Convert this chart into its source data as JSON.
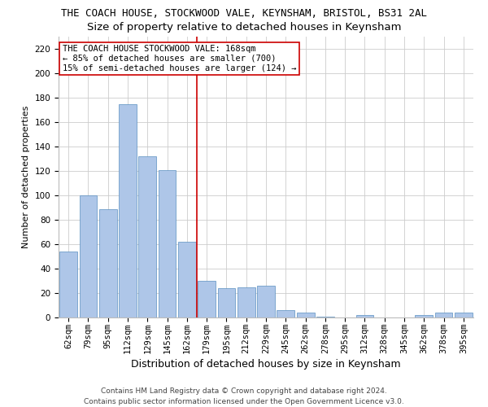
{
  "title1": "THE COACH HOUSE, STOCKWOOD VALE, KEYNSHAM, BRISTOL, BS31 2AL",
  "title2": "Size of property relative to detached houses in Keynsham",
  "xlabel": "Distribution of detached houses by size in Keynsham",
  "ylabel": "Number of detached properties",
  "categories": [
    "62sqm",
    "79sqm",
    "95sqm",
    "112sqm",
    "129sqm",
    "145sqm",
    "162sqm",
    "179sqm",
    "195sqm",
    "212sqm",
    "229sqm",
    "245sqm",
    "262sqm",
    "278sqm",
    "295sqm",
    "312sqm",
    "328sqm",
    "345sqm",
    "362sqm",
    "378sqm",
    "395sqm"
  ],
  "values": [
    54,
    100,
    89,
    175,
    132,
    121,
    62,
    30,
    24,
    25,
    26,
    6,
    4,
    1,
    0,
    2,
    0,
    0,
    2,
    4,
    4
  ],
  "bar_color": "#aec6e8",
  "bar_edge_color": "#5a8fc0",
  "vline_color": "#cc0000",
  "grid_color": "#cccccc",
  "ylim": [
    0,
    230
  ],
  "yticks": [
    0,
    20,
    40,
    60,
    80,
    100,
    120,
    140,
    160,
    180,
    200,
    220
  ],
  "annotation_lines": [
    "THE COACH HOUSE STOCKWOOD VALE: 168sqm",
    "← 85% of detached houses are smaller (700)",
    "15% of semi-detached houses are larger (124) →"
  ],
  "annotation_box_color": "#ffffff",
  "annotation_box_edge": "#cc0000",
  "footer1": "Contains HM Land Registry data © Crown copyright and database right 2024.",
  "footer2": "Contains public sector information licensed under the Open Government Licence v3.0.",
  "bg_color": "#ffffff",
  "title1_fontsize": 9,
  "title2_fontsize": 9.5,
  "xlabel_fontsize": 9,
  "ylabel_fontsize": 8,
  "tick_fontsize": 7.5,
  "footer_fontsize": 6.5,
  "annotation_fontsize": 7.5
}
